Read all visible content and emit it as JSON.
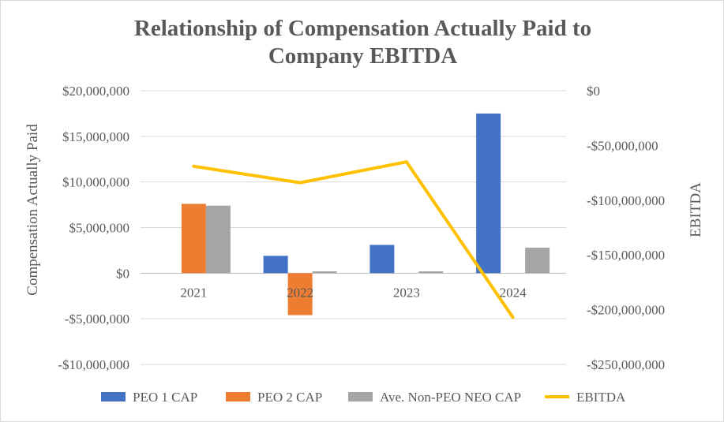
{
  "chart_data": {
    "type": "bar",
    "title_line1": "Relationship of Compensation Actually Paid to",
    "title_line2": "Company EBITDA",
    "ylabel": "Compensation Actually Paid",
    "y2label": "EBITDA",
    "categories": [
      "2021",
      "2022",
      "2023",
      "2024"
    ],
    "ylim": [
      -10000000,
      20000000
    ],
    "y_ticks": [
      20000000,
      15000000,
      10000000,
      5000000,
      0,
      -5000000,
      -10000000
    ],
    "y_tick_labels": [
      "$20,000,000",
      "$15,000,000",
      "$10,000,000",
      "$5,000,000",
      "$0",
      "-$5,000,000",
      "-$10,000,000"
    ],
    "y2lim": [
      -250000000,
      0
    ],
    "y2_ticks": [
      0,
      -50000000,
      -100000000,
      -150000000,
      -200000000,
      -250000000
    ],
    "y2_tick_labels": [
      "$0",
      "-$50,000,000",
      "-$100,000,000",
      "-$150,000,000",
      "-$200,000,000",
      "-$250,000,000"
    ],
    "series": [
      {
        "name": "PEO 1 CAP",
        "color": "#4472c4",
        "values": [
          0,
          1900000,
          3100000,
          17500000
        ]
      },
      {
        "name": "PEO 2 CAP",
        "color": "#ed7d31",
        "values": [
          7600000,
          -4600000,
          0,
          0
        ]
      },
      {
        "name": "Ave. Non-PEO NEO CAP",
        "color": "#a5a5a5",
        "values": [
          7400000,
          200000,
          200000,
          2800000
        ]
      }
    ],
    "line_series": {
      "name": "EBITDA",
      "color": "#ffc000",
      "axis": "secondary",
      "values": [
        -69000000,
        -84000000,
        -65000000,
        -207000000
      ]
    },
    "legend_position": "bottom",
    "grid": true
  }
}
